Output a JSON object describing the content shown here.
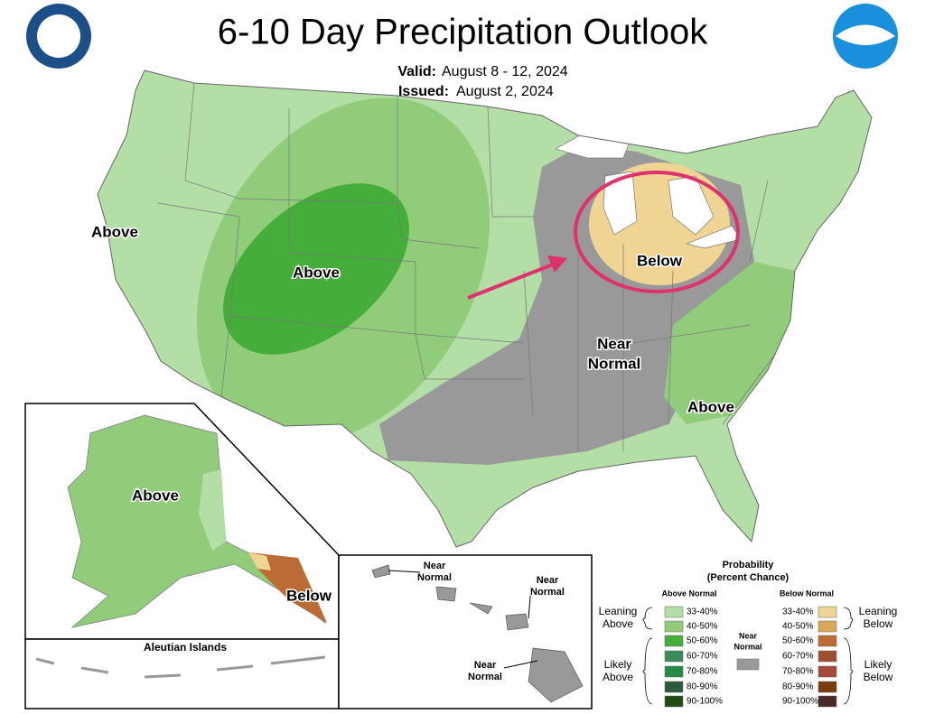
{
  "header": {
    "title": "6-10 Day Precipitation Outlook",
    "valid_label": "Valid:",
    "valid": "August 8 - 12, 2024",
    "issued_label": "Issued:",
    "issued": "August 2, 2024"
  },
  "map_labels": [
    {
      "lines": [
        "Above"
      ]
    },
    {
      "lines": [
        "Above"
      ]
    },
    {
      "lines": [
        "Below"
      ]
    },
    {
      "lines": [
        "Near",
        "Normal"
      ]
    },
    {
      "lines": [
        "Above"
      ]
    },
    {
      "lines": [
        "Above"
      ]
    },
    {
      "lines": [
        "Below"
      ]
    },
    {
      "lines": [
        "Near",
        "Normal"
      ]
    },
    {
      "lines": [
        "Near",
        "Normal"
      ]
    },
    {
      "lines": [
        "Near",
        "Normal"
      ]
    }
  ],
  "aleutian_title": "Aleutian Islands",
  "legend": {
    "title": "Probability",
    "subtitle": "(Percent Chance)",
    "above_header": "Above Normal",
    "below_header": "Below Normal",
    "near": [
      "Near",
      "Normal"
    ],
    "near_color": "#999999",
    "leaning_above": [
      "Leaning",
      "Above"
    ],
    "likely_above": [
      "Likely",
      "Above"
    ],
    "leaning_below": [
      "Leaning",
      "Below"
    ],
    "likely_below": [
      "Likely",
      "Below"
    ],
    "above": [
      {
        "label": "33-40%",
        "color": "#b3dea6"
      },
      {
        "label": "40-50%",
        "color": "#91cc7b"
      },
      {
        "label": "50-60%",
        "color": "#45ad3a"
      },
      {
        "label": "60-70%",
        "color": "#3a8a5a"
      },
      {
        "label": "70-80%",
        "color": "#238b45"
      },
      {
        "label": "80-90%",
        "color": "#2d5a3c"
      },
      {
        "label": "90-100%",
        "color": "#1f4d14"
      }
    ],
    "below": [
      {
        "label": "33-40%",
        "color": "#f0d493"
      },
      {
        "label": "40-50%",
        "color": "#d8a85a"
      },
      {
        "label": "50-60%",
        "color": "#bb6b34"
      },
      {
        "label": "60-70%",
        "color": "#9b4f2e"
      },
      {
        "label": "70-80%",
        "color": "#a5493f"
      },
      {
        "label": "80-90%",
        "color": "#7a3c0c"
      },
      {
        "label": "90-100%",
        "color": "#4a2a28"
      }
    ]
  }
}
